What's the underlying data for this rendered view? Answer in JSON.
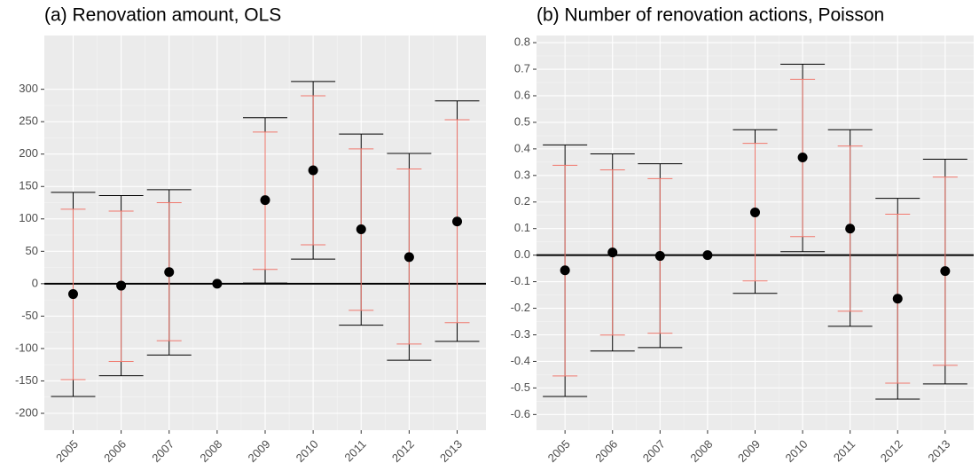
{
  "chart_data": [
    {
      "type": "errorbar",
      "title": "(a) Renovation amount, OLS",
      "categories": [
        "2005",
        "2006",
        "2007",
        "2008",
        "2009",
        "2010",
        "2011",
        "2012",
        "2013"
      ],
      "values": [
        -16,
        -3,
        18,
        0,
        129,
        175,
        84,
        41,
        96
      ],
      "outer_high": [
        141,
        136,
        145,
        null,
        256,
        312,
        231,
        201,
        282
      ],
      "outer_low": [
        -174,
        -142,
        -110,
        null,
        1,
        38,
        -64,
        -118,
        -89
      ],
      "inner_high": [
        115,
        112,
        125,
        null,
        234,
        290,
        208,
        177,
        253
      ],
      "inner_low": [
        -148,
        -120,
        -88,
        null,
        22,
        60,
        -41,
        -93,
        -60
      ],
      "color": "#000000",
      "outer_color": "#000000",
      "inner_color": "#f0776c",
      "hline": 0,
      "grid": true,
      "ylim": [
        -226,
        383
      ],
      "yticks": [
        -200,
        -150,
        -100,
        -50,
        0,
        50,
        100,
        150,
        200,
        250,
        300
      ]
    },
    {
      "type": "errorbar",
      "title": "(b) Number of renovation actions, Poisson",
      "categories": [
        "2005",
        "2006",
        "2007",
        "2008",
        "2009",
        "2010",
        "2011",
        "2012",
        "2013"
      ],
      "values": [
        -0.057,
        0.01,
        -0.003,
        0,
        0.161,
        0.368,
        0.1,
        -0.164,
        -0.06
      ],
      "outer_high": [
        0.415,
        0.381,
        0.344,
        null,
        0.472,
        0.719,
        0.472,
        0.214,
        0.361
      ],
      "outer_low": [
        -0.532,
        -0.361,
        -0.348,
        null,
        -0.144,
        0.013,
        -0.268,
        -0.542,
        -0.485
      ],
      "inner_high": [
        0.338,
        0.321,
        0.288,
        null,
        0.421,
        0.662,
        0.411,
        0.154,
        0.294
      ],
      "inner_low": [
        -0.455,
        -0.301,
        -0.294,
        null,
        -0.097,
        0.07,
        -0.211,
        -0.482,
        -0.415
      ],
      "color": "#000000",
      "outer_color": "#000000",
      "inner_color": "#f0776c",
      "hline": 0,
      "grid": true,
      "ylim": [
        -0.659,
        0.827
      ],
      "yticks": [
        -0.6,
        -0.5,
        -0.4,
        -0.3,
        -0.2,
        -0.1,
        {
          "value": 0,
          "label": "0.0"
        },
        0.1,
        0.2,
        0.3,
        0.4,
        0.5,
        0.6,
        0.7,
        0.8
      ]
    }
  ]
}
